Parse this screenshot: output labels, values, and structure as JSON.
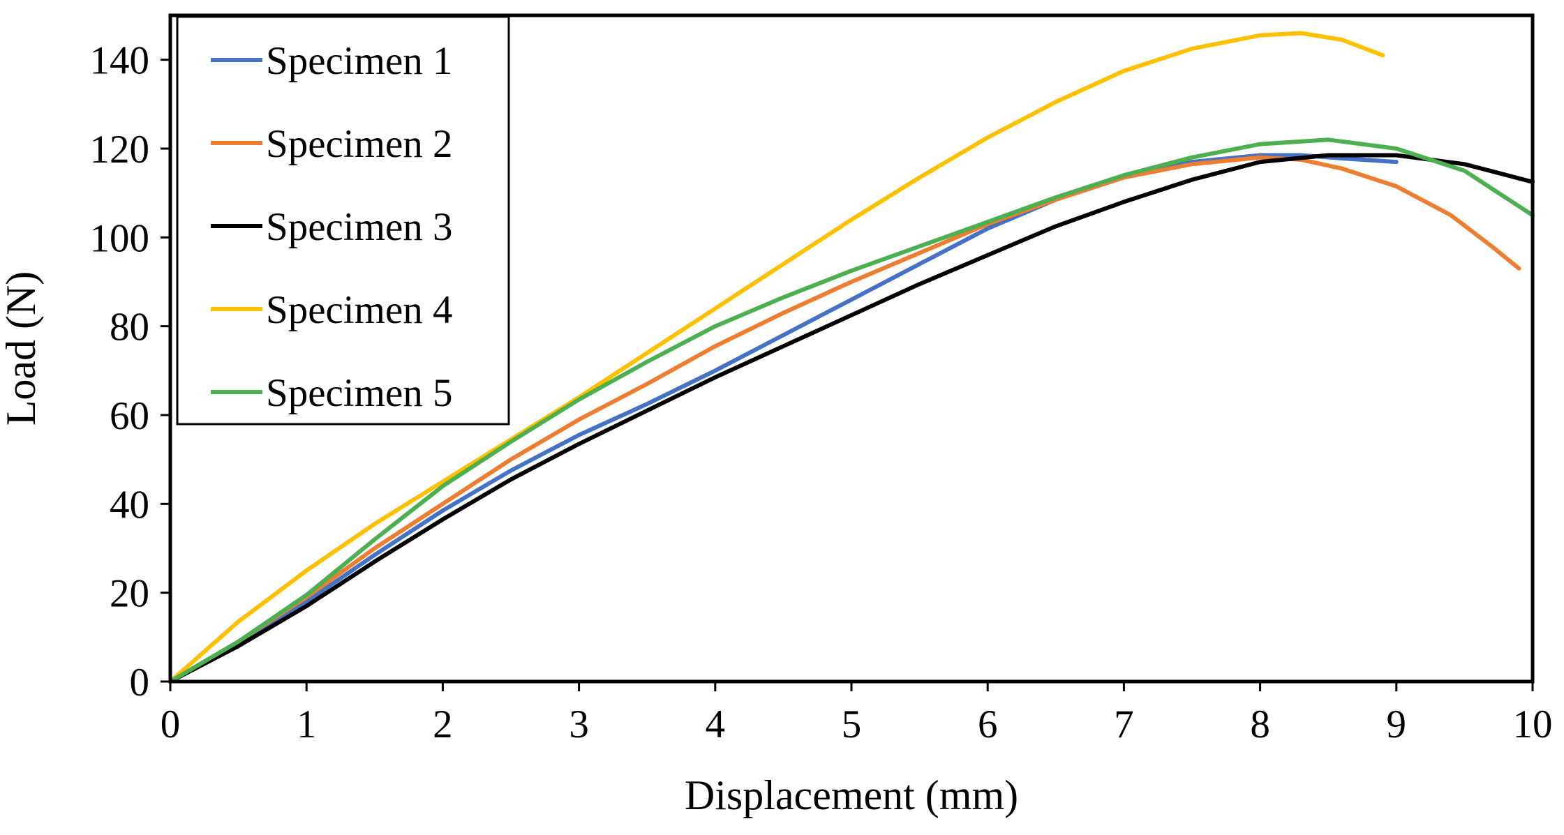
{
  "chart_data": {
    "type": "line",
    "title": "",
    "xlabel": "Displacement (mm)",
    "ylabel": "Load (N)",
    "xlim": [
      0,
      10
    ],
    "ylim": [
      0,
      150
    ],
    "xticks": [
      0,
      1,
      2,
      3,
      4,
      5,
      6,
      7,
      8,
      9,
      10
    ],
    "yticks": [
      0,
      20,
      40,
      60,
      80,
      100,
      120,
      140
    ],
    "grid": false,
    "legend_position": "top-left",
    "series": [
      {
        "name": "Specimen 1",
        "color": "#4472C4",
        "x": [
          0,
          0.5,
          1,
          1.5,
          2,
          2.5,
          3,
          3.5,
          4,
          4.5,
          5,
          5.5,
          6,
          6.5,
          7,
          7.5,
          8,
          8.3,
          8.6,
          9.0
        ],
        "y": [
          0,
          8.5,
          18,
          28.5,
          38.5,
          47.5,
          55.5,
          62.5,
          70,
          78,
          86,
          94,
          102,
          108.5,
          113.5,
          117,
          118.5,
          118.5,
          117.8,
          117
        ]
      },
      {
        "name": "Specimen 2",
        "color": "#ED7D31",
        "x": [
          0,
          0.5,
          1,
          1.5,
          2,
          2.5,
          3,
          3.5,
          4,
          4.5,
          5,
          5.5,
          6,
          6.5,
          7,
          7.5,
          8,
          8.3,
          8.6,
          9.0,
          9.4,
          9.7,
          9.9
        ],
        "y": [
          0,
          9,
          19,
          30,
          40,
          50,
          59,
          67,
          75.5,
          83,
          90,
          96.5,
          103,
          108.5,
          113.5,
          116.5,
          118,
          117.5,
          115.5,
          111.5,
          105,
          98,
          93
        ]
      },
      {
        "name": "Specimen 3",
        "color": "#000000",
        "x": [
          0,
          0.5,
          1,
          1.5,
          2,
          2.5,
          3,
          3.5,
          4,
          4.5,
          5,
          5.5,
          6,
          6.5,
          7,
          7.5,
          8,
          8.5,
          9,
          9.5,
          10
        ],
        "y": [
          0,
          8,
          17,
          27,
          36.5,
          45.5,
          53.5,
          61,
          68.5,
          75.5,
          82.5,
          89.5,
          96,
          102.5,
          108,
          113,
          117,
          118.5,
          118.5,
          116.5,
          112.5
        ]
      },
      {
        "name": "Specimen 4",
        "color": "#FFC000",
        "x": [
          0,
          0.5,
          1,
          1.5,
          2,
          2.5,
          3,
          3.5,
          4,
          4.5,
          5,
          5.5,
          6,
          6.5,
          7,
          7.5,
          8,
          8.3,
          8.6,
          8.9
        ],
        "y": [
          0,
          13.5,
          25,
          35.5,
          45,
          54.5,
          64,
          74,
          84,
          94,
          104,
          113.5,
          122.5,
          130.5,
          137.5,
          142.5,
          145.5,
          146,
          144.5,
          141
        ]
      },
      {
        "name": "Specimen 5",
        "color": "#4CAF50",
        "x": [
          0,
          0.5,
          1,
          1.5,
          2,
          2.5,
          3,
          3.5,
          4,
          4.5,
          5,
          5.5,
          6,
          6.5,
          7,
          7.5,
          8,
          8.5,
          9,
          9.5,
          10
        ],
        "y": [
          0,
          9,
          19.5,
          32,
          44,
          54,
          63.5,
          72,
          80,
          86.5,
          92.5,
          98,
          103.5,
          109,
          114,
          118,
          121,
          122,
          120,
          115,
          105
        ]
      }
    ]
  }
}
